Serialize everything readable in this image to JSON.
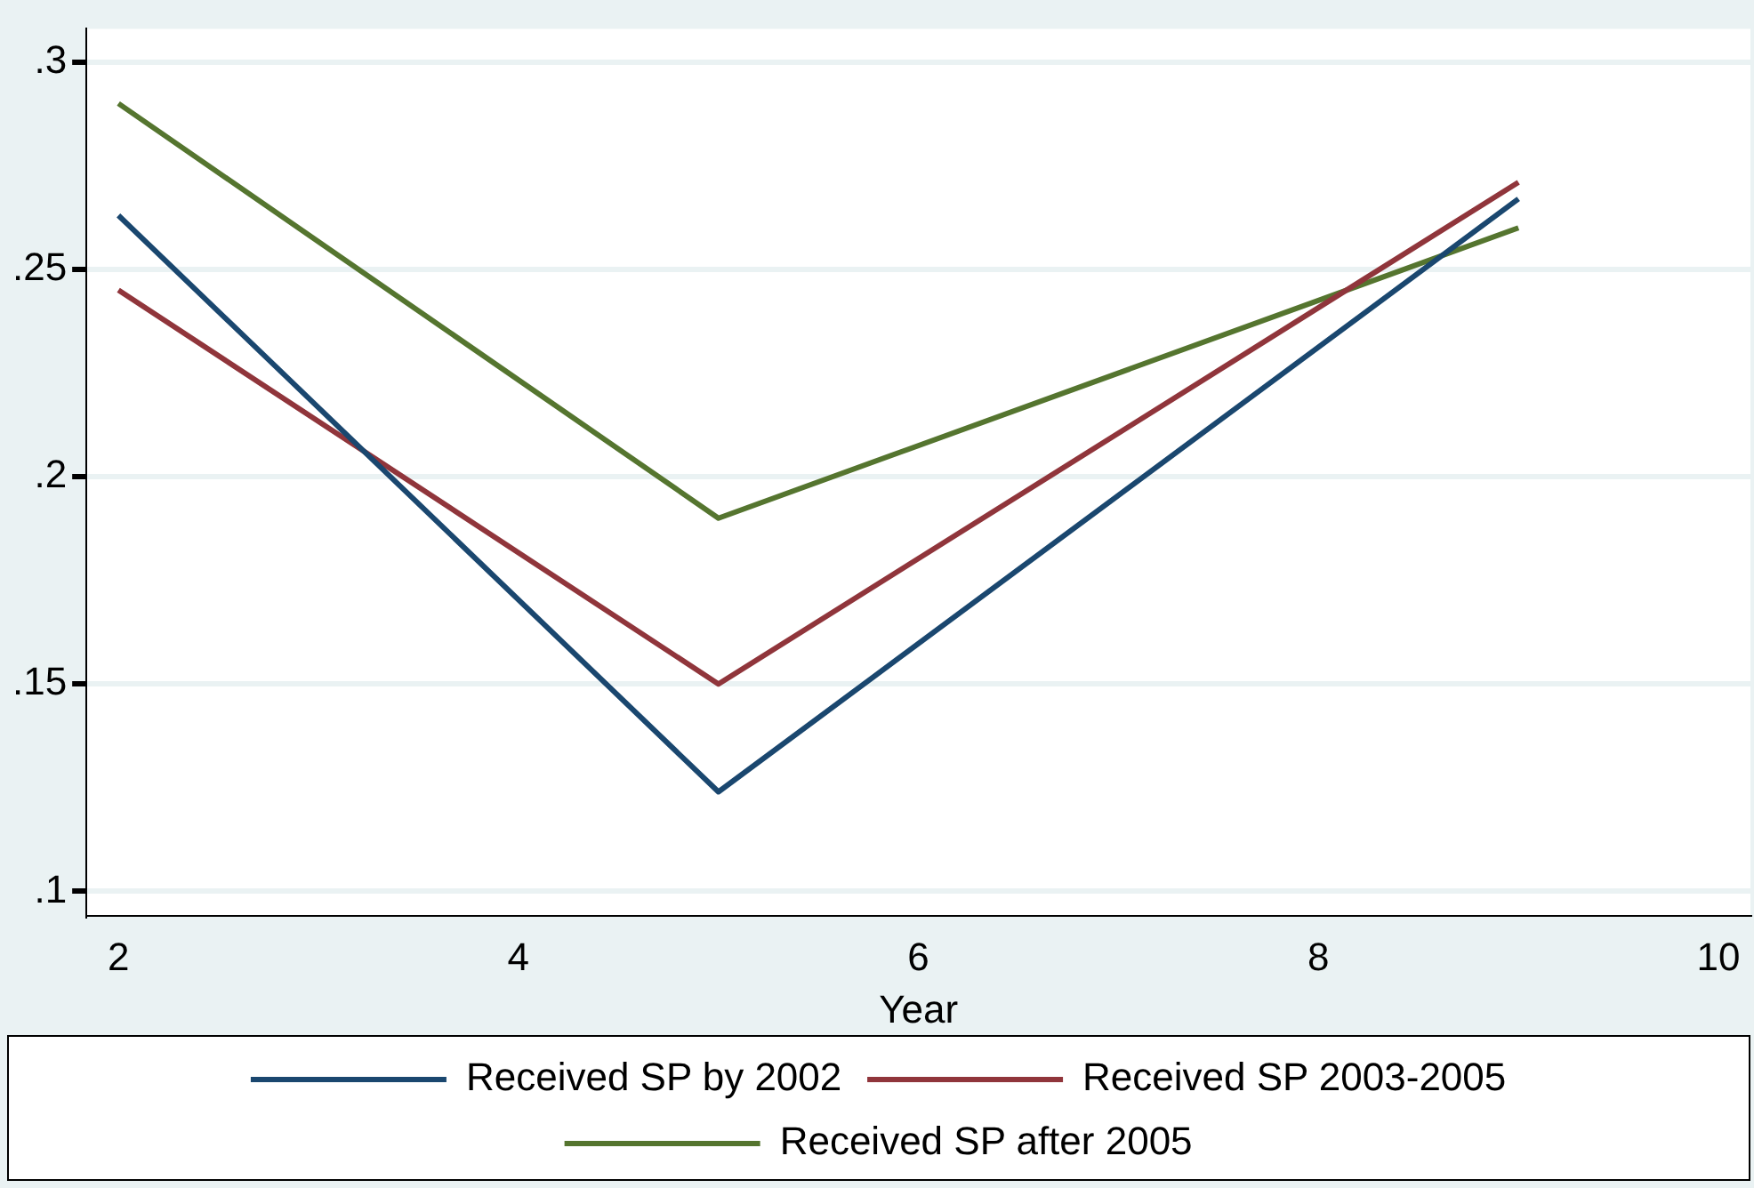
{
  "chart_data": {
    "type": "line",
    "xlabel": "Year",
    "x": [
      2,
      5,
      9
    ],
    "series": [
      {
        "name": "Received SP by 2002",
        "color": "#1a476f",
        "values": [
          0.263,
          0.124,
          0.267
        ]
      },
      {
        "name": "Received SP 2003-2005",
        "color": "#90353b",
        "values": [
          0.245,
          0.15,
          0.271
        ]
      },
      {
        "name": "Received SP after 2005",
        "color": "#55752f",
        "values": [
          0.29,
          0.19,
          0.26
        ]
      }
    ],
    "xlim": [
      1.84,
      10.16
    ],
    "xticks": [
      2,
      4,
      6,
      8,
      10
    ],
    "ylim": [
      0.094,
      0.308
    ],
    "yticks": [
      {
        "value": 0.1,
        "label": ".1"
      },
      {
        "value": 0.15,
        "label": ".15"
      },
      {
        "value": 0.2,
        "label": ".2"
      },
      {
        "value": 0.25,
        "label": ".25"
      },
      {
        "value": 0.3,
        "label": ".3"
      }
    ],
    "grid": "y",
    "legend": "bottom",
    "marker": "none",
    "line_style": "solid"
  }
}
